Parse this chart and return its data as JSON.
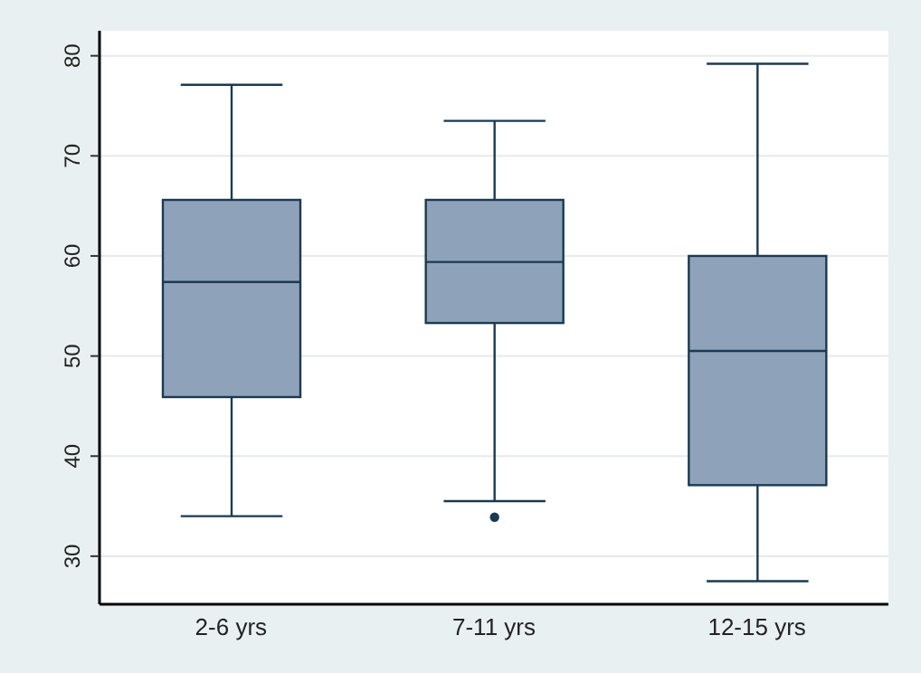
{
  "chart_data": {
    "type": "box",
    "categories": [
      "2-6 yrs",
      "7-11 yrs",
      "12-15 yrs"
    ],
    "series": [
      {
        "color": "#8ea3b9",
        "boxes": [
          {
            "low": 34.0,
            "q1": 45.9,
            "median": 57.4,
            "q3": 65.6,
            "high": 77.1
          },
          {
            "low": 35.5,
            "q1": 53.3,
            "median": 59.4,
            "q3": 65.6,
            "high": 73.5,
            "outliers": [
              33.9
            ]
          },
          {
            "low": 27.5,
            "q1": 37.1,
            "median": 50.5,
            "q3": 60.0,
            "high": 79.2
          }
        ]
      }
    ],
    "ylim": [
      25.2,
      82.5
    ],
    "yticks": [
      30,
      40,
      50,
      60,
      70,
      80
    ],
    "grid": "y"
  }
}
